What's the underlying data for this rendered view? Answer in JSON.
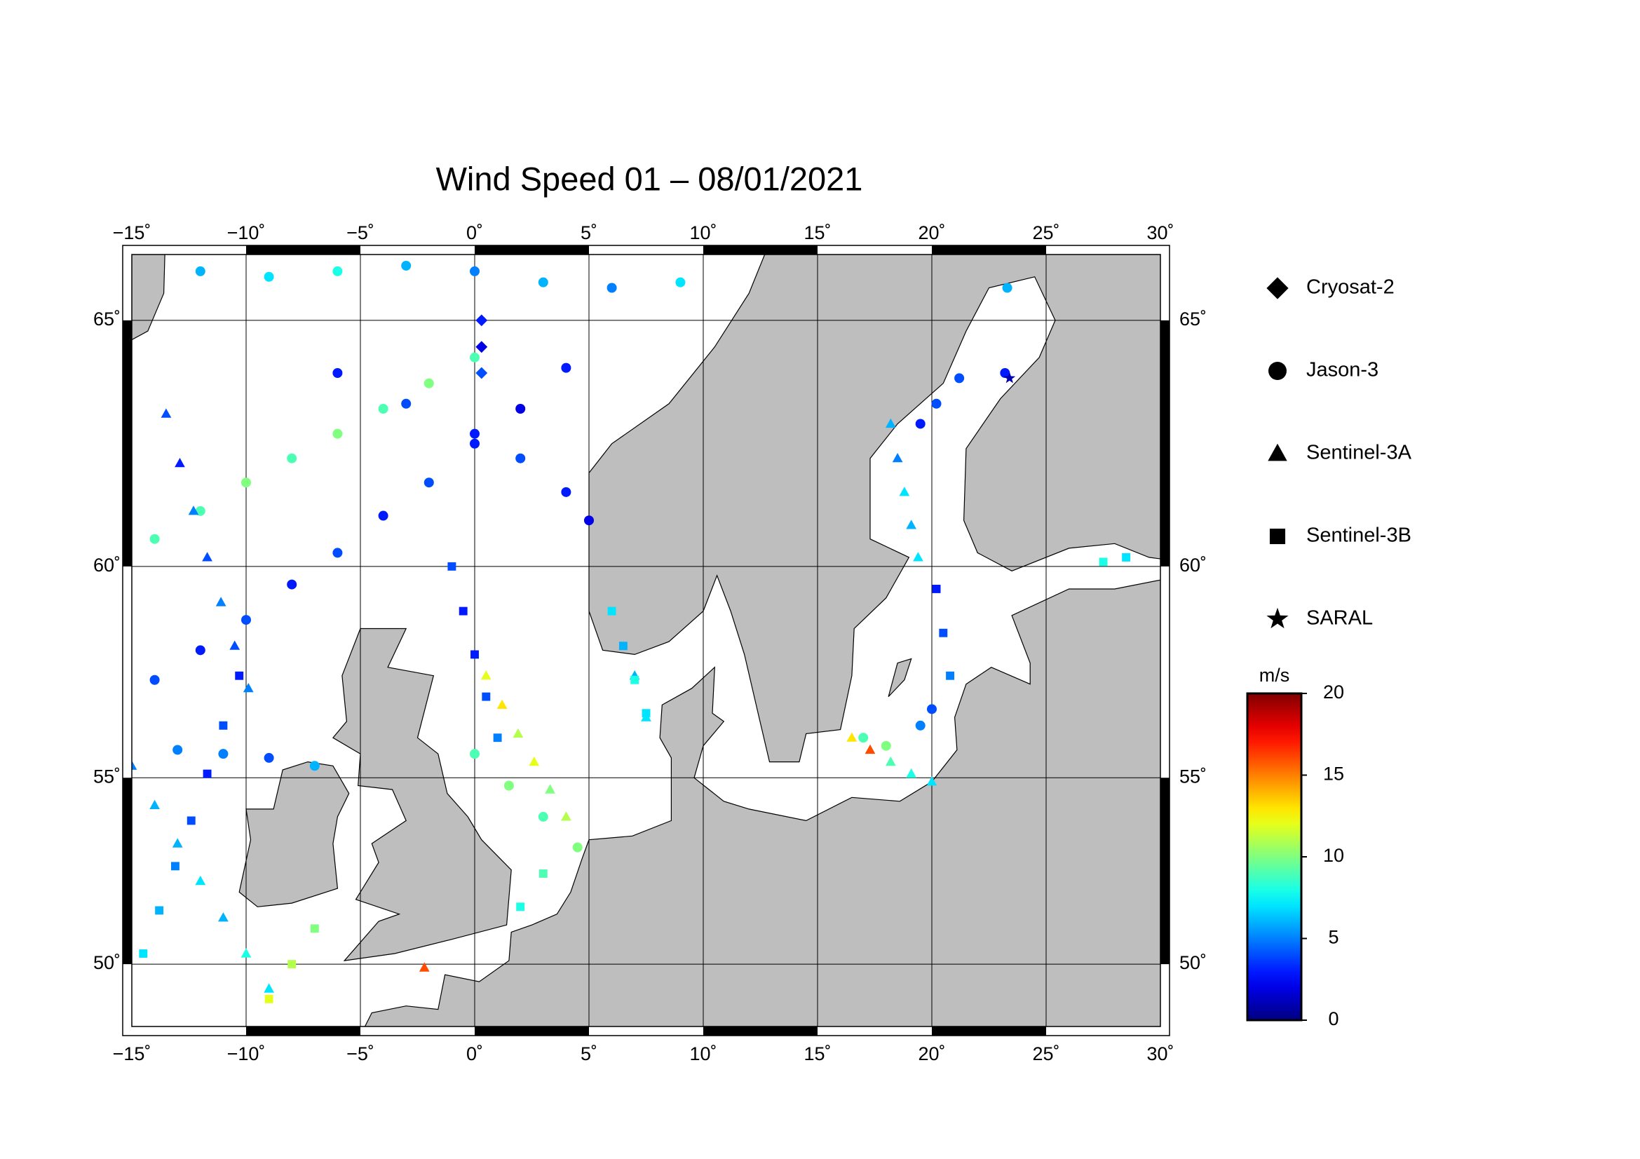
{
  "chart_data": {
    "type": "map",
    "title": "Wind Speed 01 – 08/01/2021",
    "xlim": [
      -15,
      30
    ],
    "ylim": [
      48.2,
      66.2
    ],
    "xticks": [
      {
        "value": -15,
        "label": "−15˚"
      },
      {
        "value": -10,
        "label": "−10˚"
      },
      {
        "value": -5,
        "label": "−5˚"
      },
      {
        "value": 0,
        "label": "0˚"
      },
      {
        "value": 5,
        "label": "5˚"
      },
      {
        "value": 10,
        "label": "10˚"
      },
      {
        "value": 15,
        "label": "15˚"
      },
      {
        "value": 20,
        "label": "20˚"
      },
      {
        "value": 25,
        "label": "25˚"
      },
      {
        "value": 30,
        "label": "30˚"
      }
    ],
    "yticks": [
      {
        "value": 50,
        "label": "50˚"
      },
      {
        "value": 55,
        "label": "55˚"
      },
      {
        "value": 60,
        "label": "60˚"
      },
      {
        "value": 65,
        "label": "65˚"
      }
    ],
    "grid": true,
    "colormap": "jet",
    "colorbar": {
      "label": "m/s",
      "lim": [
        0,
        20
      ],
      "ticks": [
        0,
        5,
        10,
        15,
        20
      ]
    },
    "series": [
      {
        "name": "Cryosat-2",
        "marker": "diamond",
        "lon": [
          0.3,
          0.3,
          0.3
        ],
        "lat": [
          65.0,
          64.5,
          64.0
        ],
        "values": [
          3,
          2,
          4
        ]
      },
      {
        "name": "Jason-3",
        "marker": "circle",
        "lon": [
          -14,
          -12,
          -10,
          -8,
          -6,
          -4,
          -2,
          0,
          2,
          4,
          -14,
          -12,
          -10,
          -8,
          -6,
          -4,
          -2,
          0,
          -12,
          -9,
          -6,
          -3,
          0,
          3,
          6,
          9,
          -6,
          -3,
          0,
          2,
          4,
          5,
          -13,
          -11,
          -9,
          -7,
          0,
          1.5,
          3,
          4.5,
          19.5,
          20.2,
          21.2,
          23.3,
          23.2,
          20,
          19.5,
          18,
          17
        ],
        "lat": [
          57.4,
          58.1,
          58.8,
          59.6,
          60.3,
          61.1,
          61.8,
          62.6,
          63.3,
          64.1,
          60.6,
          61.2,
          61.8,
          62.3,
          62.8,
          63.3,
          63.8,
          64.3,
          65.9,
          65.8,
          65.9,
          66.0,
          65.9,
          65.7,
          65.6,
          65.7,
          64.0,
          63.4,
          62.8,
          62.3,
          61.6,
          61.0,
          55.7,
          55.6,
          55.5,
          55.3,
          55.6,
          54.8,
          54.0,
          53.2,
          63.0,
          63.4,
          63.9,
          65.6,
          64.0,
          56.7,
          56.3,
          55.8,
          56.0
        ],
        "values": [
          4,
          3,
          4,
          3,
          4,
          3,
          4,
          3,
          2,
          3,
          9,
          9,
          10,
          9,
          10,
          9,
          10,
          9,
          6,
          7,
          8,
          6,
          5,
          6,
          5,
          7,
          3,
          4,
          3,
          4,
          3,
          2,
          5,
          5,
          4,
          6,
          9,
          10,
          9,
          10,
          3,
          4,
          4,
          6,
          3,
          4,
          5,
          10,
          9
        ]
      },
      {
        "name": "Sentinel-3A",
        "marker": "triangle",
        "lon": [
          -15,
          -14,
          -13,
          -12,
          -11,
          -10,
          -9,
          -13.5,
          -12.9,
          -12.3,
          -11.7,
          -11.1,
          -10.5,
          -9.9,
          16.5,
          17.3,
          18.2,
          19.1,
          20,
          18.2,
          18.5,
          18.8,
          19.1,
          19.4,
          0.5,
          1.2,
          1.9,
          2.6,
          3.3,
          4,
          -2.2,
          7,
          7.5
        ],
        "lat": [
          55.3,
          54.3,
          53.3,
          52.3,
          51.3,
          50.3,
          49.3,
          63.2,
          62.2,
          61.2,
          60.2,
          59.2,
          58.2,
          57.2,
          56.0,
          55.7,
          55.4,
          55.1,
          54.9,
          63.0,
          62.3,
          61.6,
          60.9,
          60.2,
          57.5,
          56.8,
          56.1,
          55.4,
          54.7,
          54.0,
          49.9,
          57.5,
          56.5
        ],
        "values": [
          5,
          6,
          6,
          7,
          6,
          8,
          7,
          4,
          3,
          5,
          4,
          5,
          4,
          5,
          13,
          16,
          9,
          8,
          7,
          6,
          5,
          7,
          6,
          7,
          12,
          13,
          11,
          12,
          10,
          11,
          16,
          6,
          7
        ]
      },
      {
        "name": "Sentinel-3B",
        "marker": "square",
        "lon": [
          -14.5,
          -13.8,
          -13.1,
          -12.4,
          -11.7,
          -11,
          -10.3,
          -1,
          -0.5,
          0,
          0.5,
          1,
          6,
          6.5,
          7,
          7.5,
          20.2,
          20.5,
          20.8,
          -9,
          -8,
          -7,
          27.5,
          28.5,
          2,
          3
        ],
        "lat": [
          50.3,
          51.5,
          52.7,
          53.9,
          55.1,
          56.3,
          57.5,
          60,
          59,
          58,
          57,
          56,
          59,
          58.2,
          57.4,
          56.6,
          59.5,
          58.5,
          57.5,
          49,
          50,
          51,
          60.1,
          60.2,
          51.6,
          52.5
        ],
        "values": [
          7,
          6,
          5,
          4,
          3,
          4,
          3,
          4,
          3,
          3,
          4,
          5,
          7,
          6,
          8,
          7,
          3,
          4,
          5,
          12,
          11,
          10,
          8,
          7,
          8,
          9
        ]
      },
      {
        "name": "SARAL",
        "marker": "star",
        "lon": [
          23.4
        ],
        "lat": [
          63.9
        ],
        "values": [
          1
        ]
      }
    ]
  }
}
